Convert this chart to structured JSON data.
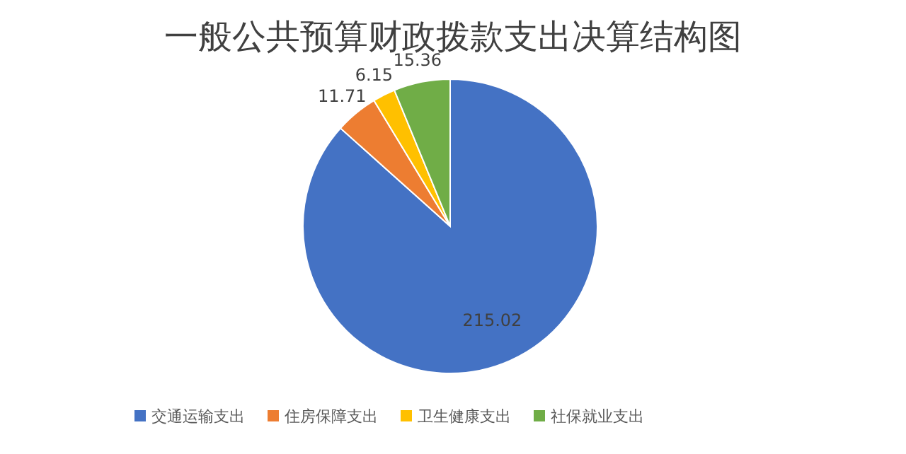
{
  "chart_data": {
    "type": "pie",
    "title": "一般公共预算财政拨款支出决算结构图",
    "categories": [
      "交通运输支出",
      "住房保障支出",
      "卫生健康支出",
      "社保就业支出"
    ],
    "values": [
      215.02,
      11.71,
      6.15,
      15.36
    ],
    "colors": [
      "#4472c4",
      "#ed7d31",
      "#ffc000",
      "#70ad47"
    ],
    "data_labels": true,
    "legend": "bottom"
  }
}
